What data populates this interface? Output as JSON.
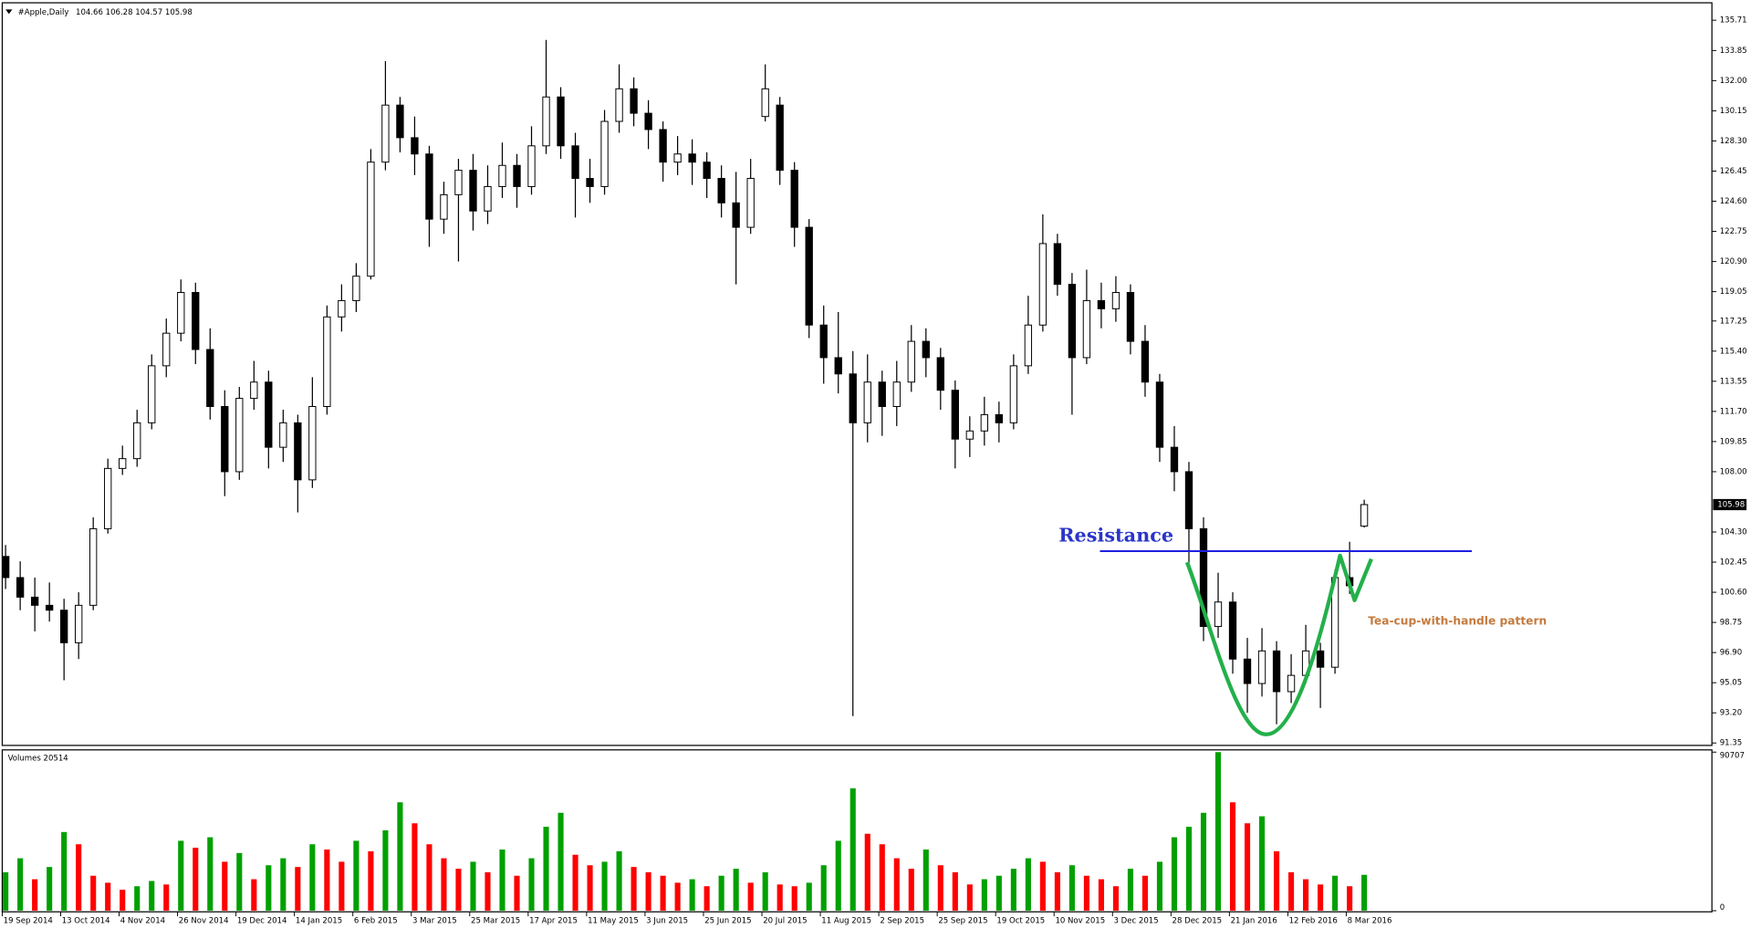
{
  "chart_data": {
    "type": "candlestick",
    "symbol": "#Apple,Daily",
    "ohlc": [
      [
        102.8,
        103.5,
        100.8,
        101.5
      ],
      [
        101.5,
        102.5,
        99.5,
        100.3
      ],
      [
        100.3,
        101.5,
        98.2,
        99.8
      ],
      [
        99.8,
        101.2,
        98.8,
        99.5
      ],
      [
        99.5,
        100.2,
        95.2,
        97.5
      ],
      [
        97.5,
        100.6,
        96.5,
        99.8
      ],
      [
        99.8,
        105.2,
        99.5,
        104.5
      ],
      [
        104.5,
        108.8,
        104.2,
        108.2
      ],
      [
        108.2,
        109.6,
        107.8,
        108.8
      ],
      [
        108.8,
        111.8,
        108.3,
        111
      ],
      [
        111,
        115.2,
        110.6,
        114.5
      ],
      [
        114.5,
        117.4,
        113.8,
        116.5
      ],
      [
        116.5,
        119.8,
        116,
        119
      ],
      [
        119,
        119.6,
        114.6,
        115.5
      ],
      [
        115.5,
        116.8,
        111.2,
        112
      ],
      [
        112,
        113,
        106.5,
        108
      ],
      [
        108,
        113.2,
        107.5,
        112.5
      ],
      [
        112.5,
        114.8,
        111.8,
        113.5
      ],
      [
        113.5,
        114.2,
        108.2,
        109.5
      ],
      [
        109.5,
        111.8,
        108.6,
        111
      ],
      [
        111,
        111.5,
        105.5,
        107.5
      ],
      [
        107.5,
        113.8,
        107,
        112
      ],
      [
        112,
        118.2,
        111.5,
        117.5
      ],
      [
        117.5,
        119.5,
        116.6,
        118.5
      ],
      [
        118.5,
        120.8,
        117.8,
        120
      ],
      [
        120,
        127.8,
        119.8,
        127
      ],
      [
        127,
        133.2,
        126.5,
        130.5
      ],
      [
        130.5,
        131,
        127.6,
        128.5
      ],
      [
        128.5,
        129.8,
        126.2,
        127.5
      ],
      [
        127.5,
        128,
        121.8,
        123.5
      ],
      [
        123.5,
        125.8,
        122.6,
        125
      ],
      [
        125,
        127.2,
        120.9,
        126.5
      ],
      [
        126.5,
        127.5,
        122.8,
        124
      ],
      [
        124,
        126.8,
        123.2,
        125.5
      ],
      [
        125.5,
        128.2,
        124.8,
        126.8
      ],
      [
        126.8,
        127.5,
        124.2,
        125.5
      ],
      [
        125.5,
        129.2,
        125,
        128
      ],
      [
        128,
        134.5,
        127.5,
        131
      ],
      [
        131,
        131.6,
        127.2,
        128
      ],
      [
        128,
        128.8,
        123.6,
        126
      ],
      [
        126,
        127.2,
        124.5,
        125.5
      ],
      [
        125.5,
        130.2,
        125,
        129.5
      ],
      [
        129.5,
        133,
        128.8,
        131.5
      ],
      [
        131.5,
        132.2,
        129.2,
        130
      ],
      [
        130,
        130.8,
        127.8,
        129
      ],
      [
        129,
        129.5,
        125.8,
        127
      ],
      [
        127,
        128.6,
        126.2,
        127.5
      ],
      [
        127.5,
        128.4,
        125.6,
        127
      ],
      [
        127,
        127.6,
        124.8,
        126
      ],
      [
        126,
        126.8,
        123.6,
        124.5
      ],
      [
        124.5,
        126.4,
        119.5,
        123
      ],
      [
        123,
        127.2,
        122.6,
        126
      ],
      [
        129.8,
        133,
        129.5,
        131.5
      ],
      [
        130.5,
        131,
        125.6,
        126.5
      ],
      [
        126.5,
        127,
        121.8,
        123
      ],
      [
        123,
        123.5,
        116.2,
        117
      ],
      [
        117,
        118.2,
        113.4,
        115
      ],
      [
        115,
        117.8,
        112.8,
        114
      ],
      [
        114,
        115.4,
        93,
        111
      ],
      [
        111,
        115.2,
        109.8,
        113.5
      ],
      [
        113.5,
        114.2,
        110.2,
        112
      ],
      [
        112,
        114.8,
        110.8,
        113.5
      ],
      [
        113.5,
        117,
        112.9,
        116
      ],
      [
        116,
        116.8,
        113.8,
        115
      ],
      [
        115,
        115.6,
        111.8,
        113
      ],
      [
        113,
        113.6,
        108.2,
        110
      ],
      [
        110,
        111.4,
        108.9,
        110.5
      ],
      [
        110.5,
        112.6,
        109.6,
        111.5
      ],
      [
        111.5,
        112.3,
        109.8,
        111
      ],
      [
        111,
        115.2,
        110.6,
        114.5
      ],
      [
        114.5,
        118.8,
        114,
        117
      ],
      [
        117,
        123.8,
        116.6,
        122
      ],
      [
        122,
        122.6,
        118.8,
        119.5
      ],
      [
        119.5,
        120.2,
        111.5,
        115
      ],
      [
        115,
        120.4,
        114.6,
        118.5
      ],
      [
        118.5,
        119.6,
        116.8,
        118
      ],
      [
        118,
        120,
        117.2,
        119
      ],
      [
        119,
        119.5,
        115.2,
        116
      ],
      [
        116,
        117,
        112.6,
        113.5
      ],
      [
        113.5,
        114,
        108.6,
        109.5
      ],
      [
        109.5,
        110.8,
        106.8,
        108
      ],
      [
        108,
        108.6,
        102,
        104.5
      ],
      [
        104.5,
        105.2,
        97.6,
        98.5
      ],
      [
        98.5,
        101.8,
        97.8,
        100
      ],
      [
        100,
        100.6,
        95.6,
        96.5
      ],
      [
        96.5,
        97.8,
        93.2,
        95
      ],
      [
        95,
        98.4,
        94.2,
        97
      ],
      [
        97,
        97.6,
        92.5,
        94.5
      ],
      [
        94.5,
        96.8,
        93.8,
        95.5
      ],
      [
        95.5,
        98.6,
        95,
        97
      ],
      [
        97,
        97.5,
        93.5,
        96
      ],
      [
        96,
        102,
        95.6,
        101.5
      ],
      [
        101.5,
        103.7,
        100.5,
        101
      ],
      [
        104.66,
        106.28,
        104.57,
        105.98
      ]
    ],
    "volume_label": "Volumes",
    "volumes": [
      22000,
      30000,
      18000,
      25000,
      45000,
      38000,
      20000,
      16000,
      12000,
      14000,
      17000,
      15000,
      40000,
      36000,
      42000,
      28000,
      33000,
      18000,
      26000,
      30000,
      25000,
      38000,
      35000,
      28000,
      40000,
      34000,
      46000,
      62000,
      50000,
      38000,
      30000,
      24000,
      28000,
      22000,
      35000,
      20000,
      30000,
      48000,
      56000,
      32000,
      26000,
      28000,
      34000,
      25000,
      22000,
      20000,
      16000,
      18000,
      14000,
      20000,
      24000,
      16000,
      22000,
      15000,
      14000,
      16000,
      26000,
      40000,
      70000,
      44000,
      38000,
      30000,
      24000,
      35000,
      26000,
      22000,
      15000,
      18000,
      20000,
      24000,
      30000,
      28000,
      22000,
      26000,
      20000,
      18000,
      14000,
      24000,
      20000,
      28000,
      42000,
      48000,
      56000,
      90707,
      62000,
      50000,
      54000,
      34000,
      22000,
      18000,
      15000,
      20000,
      14000,
      20514
    ],
    "x_ticks": [
      {
        "value": 0,
        "label": "19 Sep 2014"
      },
      {
        "value": 4,
        "label": "13 Oct 2014"
      },
      {
        "value": 8,
        "label": "4 Nov 2014"
      },
      {
        "value": 12,
        "label": "26 Nov 2014"
      },
      {
        "value": 16,
        "label": "19 Dec 2014"
      },
      {
        "value": 20,
        "label": "14 Jan 2015"
      },
      {
        "value": 24,
        "label": "6 Feb 2015"
      },
      {
        "value": 28,
        "label": "3 Mar 2015"
      },
      {
        "value": 32,
        "label": "25 Mar 2015"
      },
      {
        "value": 36,
        "label": "17 Apr 2015"
      },
      {
        "value": 40,
        "label": "11 May 2015"
      },
      {
        "value": 44,
        "label": "3 Jun 2015"
      },
      {
        "value": 48,
        "label": "25 Jun 2015"
      },
      {
        "value": 52,
        "label": "20 Jul 2015"
      },
      {
        "value": 56,
        "label": "11 Aug 2015"
      },
      {
        "value": 60,
        "label": "2 Sep 2015"
      },
      {
        "value": 64,
        "label": "25 Sep 2015"
      },
      {
        "value": 68,
        "label": "19 Oct 2015"
      },
      {
        "value": 72,
        "label": "10 Nov 2015"
      },
      {
        "value": 76,
        "label": "3 Dec 2015"
      },
      {
        "value": 80,
        "label": "28 Dec 2015"
      },
      {
        "value": 84,
        "label": "21 Jan 2016"
      },
      {
        "value": 88,
        "label": "12 Feb 2016"
      },
      {
        "value": 92,
        "label": "8 Mar 2016"
      }
    ],
    "xlim": [
      -0.23,
      116.8
    ],
    "ylim": [
      91.2,
      136.3
    ],
    "yticks": [
      135.71,
      133.85,
      {
        "value": 132,
        "label": "132.00"
      },
      130.15,
      {
        "value": 128.3,
        "label": "128.30"
      },
      126.45,
      {
        "value": 124.6,
        "label": "124.60"
      },
      122.75,
      {
        "value": 120.9,
        "label": "120.90"
      },
      119.05,
      117.25,
      {
        "value": 115.4,
        "label": "115.40"
      },
      113.55,
      {
        "value": 111.7,
        "label": "111.70"
      },
      109.85,
      {
        "value": 108,
        "label": "108.00"
      },
      {
        "value": 104.3,
        "label": "104.30"
      },
      102.45,
      {
        "value": 100.6,
        "label": "100.60"
      },
      98.75,
      {
        "value": 96.9,
        "label": "96.90"
      },
      95.05,
      {
        "value": 93.2,
        "label": "93.20"
      },
      91.35
    ],
    "volume_ylim": [
      0,
      90707
    ],
    "volume_yticks": [
      90707,
      0
    ],
    "up_color": "#ffffff",
    "down_color": "#000000",
    "volume_up_color": "#00a000",
    "volume_down_color": "#ff0000",
    "annotations": {
      "resistance": "Resistance",
      "pattern": "Tea-cup-with-handle pattern"
    }
  }
}
